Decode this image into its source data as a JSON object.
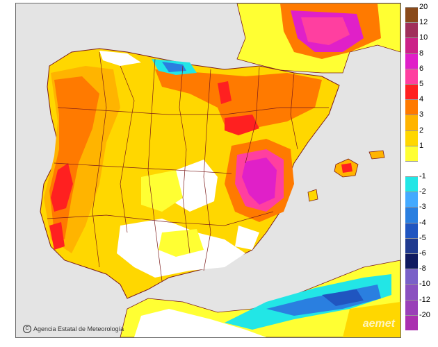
{
  "credit": {
    "symbol": "C",
    "text": "Agencia Estatal de Meteorología"
  },
  "watermark": "aemet",
  "legend": {
    "labels": [
      "20",
      "12",
      "10",
      "8",
      "6",
      "5",
      "4",
      "3",
      "2",
      "1",
      "",
      "-1",
      "-2",
      "-3",
      "-4",
      "-5",
      "-6",
      "-8",
      "-10",
      "-12",
      "-20"
    ],
    "colors": [
      "#8a4a1a",
      "#a0305a",
      "#cc2288",
      "#e020c8",
      "#ff3fa0",
      "#ff2020",
      "#ff7a00",
      "#ffb400",
      "#ffd700",
      "#ffff33",
      "#ffffff",
      "#22e6e6",
      "#44aaff",
      "#2a7fe0",
      "#2055c0",
      "#203a8f",
      "#101a60",
      "#7a60c8",
      "#8a50c0",
      "#9a40b8",
      "#aa30b0"
    ]
  },
  "colors": {
    "sea": "#e4e4e4",
    "positive_light": "#ffff33",
    "positive_mid": "#ffd700",
    "positive_high": "#ffb400",
    "warm": "#ff7a00",
    "hot": "#ff2020",
    "very_hot": "#e020c8",
    "cool": "#22e6e6",
    "cold": "#2a7fe0"
  }
}
